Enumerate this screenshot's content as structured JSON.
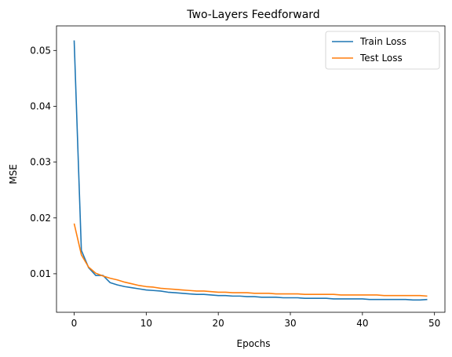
{
  "chart_data": {
    "type": "line",
    "title": "Two-Layers Feedforward",
    "xlabel": "Epochs",
    "ylabel": "MSE",
    "xlim": [
      -2.45,
      51.45
    ],
    "ylim": [
      0.0031,
      0.0544
    ],
    "xticks": [
      0,
      10,
      20,
      30,
      40,
      50
    ],
    "yticks": [
      0.01,
      0.02,
      0.03,
      0.04,
      0.05
    ],
    "ytick_labels": [
      "0.01",
      "0.02",
      "0.03",
      "0.04",
      "0.05"
    ],
    "xtick_labels": [
      "0",
      "10",
      "20",
      "30",
      "40",
      "50"
    ],
    "grid": false,
    "legend_position": "top-right",
    "colors": {
      "train": "#1f77b4",
      "test": "#ff7f0e"
    },
    "x": [
      0,
      1,
      2,
      3,
      4,
      5,
      6,
      7,
      8,
      9,
      10,
      11,
      12,
      13,
      14,
      15,
      16,
      17,
      18,
      19,
      20,
      21,
      22,
      23,
      24,
      25,
      26,
      27,
      28,
      29,
      30,
      31,
      32,
      33,
      34,
      35,
      36,
      37,
      38,
      39,
      40,
      41,
      42,
      43,
      44,
      45,
      46,
      47,
      48,
      49
    ],
    "series": [
      {
        "name": "Train Loss",
        "values": [
          0.0518,
          0.0142,
          0.0111,
          0.0097,
          0.0097,
          0.0084,
          0.008,
          0.0077,
          0.0075,
          0.0073,
          0.0071,
          0.007,
          0.0069,
          0.0067,
          0.0066,
          0.0065,
          0.0064,
          0.0063,
          0.0063,
          0.0062,
          0.0061,
          0.0061,
          0.006,
          0.006,
          0.0059,
          0.0059,
          0.0058,
          0.0058,
          0.0058,
          0.0057,
          0.0057,
          0.0057,
          0.0056,
          0.0056,
          0.0056,
          0.0056,
          0.0055,
          0.0055,
          0.0055,
          0.0055,
          0.0055,
          0.0054,
          0.0054,
          0.0054,
          0.0054,
          0.0054,
          0.0054,
          0.0053,
          0.0053,
          0.0054
        ]
      },
      {
        "name": "Test Loss",
        "values": [
          0.019,
          0.0134,
          0.0112,
          0.0101,
          0.0096,
          0.0092,
          0.0089,
          0.0085,
          0.0082,
          0.0079,
          0.0077,
          0.0076,
          0.0074,
          0.0073,
          0.0072,
          0.0071,
          0.007,
          0.0069,
          0.0069,
          0.0068,
          0.0067,
          0.0067,
          0.0066,
          0.0066,
          0.0066,
          0.0065,
          0.0065,
          0.0065,
          0.0064,
          0.0064,
          0.0064,
          0.0064,
          0.0063,
          0.0063,
          0.0063,
          0.0063,
          0.0063,
          0.0062,
          0.0062,
          0.0062,
          0.0062,
          0.0062,
          0.0062,
          0.0061,
          0.0061,
          0.0061,
          0.0061,
          0.0061,
          0.0061,
          0.006
        ]
      }
    ]
  }
}
